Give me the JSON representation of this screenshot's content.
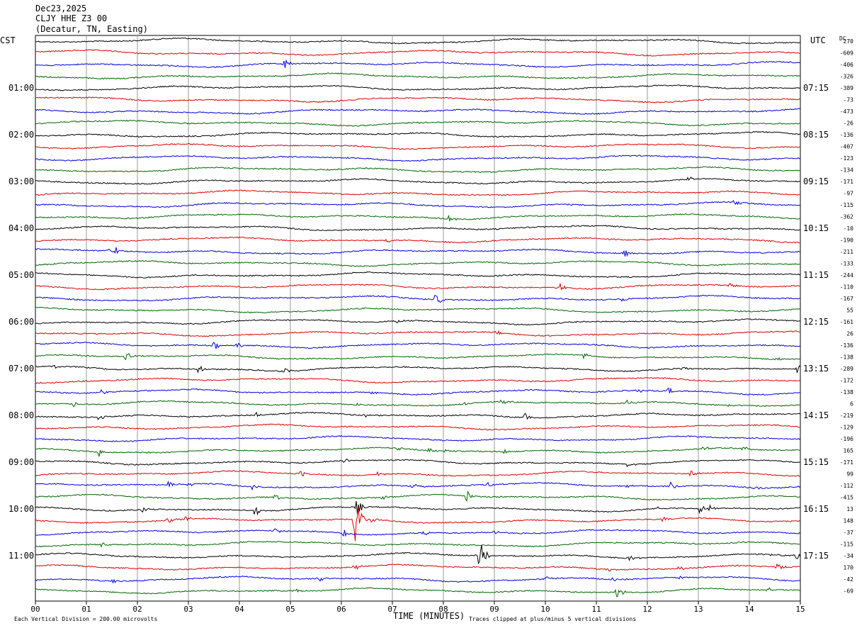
{
  "header": {
    "date": "Dec23,2025",
    "station": "CLJY HHE Z3 00",
    "location": "(Decatur, TN, Easting)"
  },
  "left_timezone": "CST",
  "right_timezone": "UTC",
  "dc_label": "DC",
  "chart_data": {
    "type": "line",
    "description_kind": "helicorder",
    "xlabel": "TIME (MINUTES)",
    "x_ticks": [
      "00",
      "01",
      "02",
      "03",
      "04",
      "05",
      "06",
      "07",
      "08",
      "09",
      "10",
      "11",
      "12",
      "13",
      "14",
      "15"
    ],
    "xlim": [
      0,
      15
    ],
    "left_hour_labels": [
      {
        "row": 4,
        "label": "01:00"
      },
      {
        "row": 8,
        "label": "02:00"
      },
      {
        "row": 12,
        "label": "03:00"
      },
      {
        "row": 16,
        "label": "04:00"
      },
      {
        "row": 20,
        "label": "05:00"
      },
      {
        "row": 24,
        "label": "06:00"
      },
      {
        "row": 28,
        "label": "07:00"
      },
      {
        "row": 32,
        "label": "08:00"
      },
      {
        "row": 36,
        "label": "09:00"
      },
      {
        "row": 40,
        "label": "10:00"
      },
      {
        "row": 44,
        "label": "11:00"
      }
    ],
    "right_hour_labels": [
      {
        "row": 4,
        "label": "07:15"
      },
      {
        "row": 8,
        "label": "08:15"
      },
      {
        "row": 12,
        "label": "09:15"
      },
      {
        "row": 16,
        "label": "10:15"
      },
      {
        "row": 20,
        "label": "11:15"
      },
      {
        "row": 24,
        "label": "12:15"
      },
      {
        "row": 28,
        "label": "13:15"
      },
      {
        "row": 32,
        "label": "14:15"
      },
      {
        "row": 36,
        "label": "15:15"
      },
      {
        "row": 40,
        "label": "16:15"
      },
      {
        "row": 44,
        "label": "17:15"
      }
    ],
    "dc_offsets": [
      "270",
      "-609",
      "-406",
      "-326",
      "-389",
      "-73",
      "-473",
      "-26",
      "-136",
      "-407",
      "-123",
      "-134",
      "-171",
      "-97",
      "-115",
      "-362",
      "-10",
      "-190",
      "-211",
      "-133",
      "-244",
      "-110",
      "-167",
      "55",
      "-161",
      "26",
      "-136",
      "-138",
      "-289",
      "-172",
      "-138",
      "6",
      "-219",
      "-129",
      "-196",
      "165",
      "-171",
      "99",
      "-112",
      "-415",
      "13",
      "148",
      "-37",
      "-115",
      "-34",
      "170",
      "-42",
      "-69"
    ],
    "trace_colors": [
      "#000000",
      "#dd0000",
      "#0000dd",
      "#006600"
    ],
    "events": [
      {
        "row": 2,
        "minute": 4.85,
        "amp": 14
      },
      {
        "row": 12,
        "minute": 12.8,
        "amp": 4
      },
      {
        "row": 14,
        "minute": 13.7,
        "amp": 6
      },
      {
        "row": 15,
        "minute": 8.1,
        "amp": 4
      },
      {
        "row": 17,
        "minute": 6.9,
        "amp": 4
      },
      {
        "row": 18,
        "minute": 1.35,
        "amp": 7
      },
      {
        "row": 18,
        "minute": 1.55,
        "amp": 7
      },
      {
        "row": 18,
        "minute": 11.55,
        "amp": 5
      },
      {
        "row": 21,
        "minute": 10.3,
        "amp": 9
      },
      {
        "row": 21,
        "minute": 13.6,
        "amp": 4
      },
      {
        "row": 22,
        "minute": 7.85,
        "amp": 10
      },
      {
        "row": 22,
        "minute": 11.5,
        "amp": 5
      },
      {
        "row": 24,
        "minute": 7.1,
        "amp": 5
      },
      {
        "row": 25,
        "minute": 9.05,
        "amp": 3
      },
      {
        "row": 26,
        "minute": 3.5,
        "amp": 7
      },
      {
        "row": 26,
        "minute": 3.95,
        "amp": 6
      },
      {
        "row": 27,
        "minute": 1.75,
        "amp": 9
      },
      {
        "row": 27,
        "minute": 10.75,
        "amp": 5
      },
      {
        "row": 27,
        "minute": 14.55,
        "amp": 4
      },
      {
        "row": 28,
        "minute": 0.35,
        "amp": 5
      },
      {
        "row": 28,
        "minute": 3.2,
        "amp": 6
      },
      {
        "row": 28,
        "minute": 4.85,
        "amp": 6
      },
      {
        "row": 28,
        "minute": 12.7,
        "amp": 4
      },
      {
        "row": 28,
        "minute": 14.95,
        "amp": 8
      },
      {
        "row": 29,
        "minute": 10.45,
        "amp": 3
      },
      {
        "row": 30,
        "minute": 1.3,
        "amp": 5
      },
      {
        "row": 30,
        "minute": 6.6,
        "amp": 3
      },
      {
        "row": 30,
        "minute": 11.8,
        "amp": 4
      },
      {
        "row": 30,
        "minute": 12.4,
        "amp": 6
      },
      {
        "row": 31,
        "minute": 0.75,
        "amp": 4
      },
      {
        "row": 31,
        "minute": 6.3,
        "amp": 4
      },
      {
        "row": 31,
        "minute": 8.4,
        "amp": 3
      },
      {
        "row": 31,
        "minute": 9.15,
        "amp": 4
      },
      {
        "row": 31,
        "minute": 11.6,
        "amp": 4
      },
      {
        "row": 31,
        "minute": 13.6,
        "amp": 4
      },
      {
        "row": 32,
        "minute": 1.25,
        "amp": 6
      },
      {
        "row": 32,
        "minute": 4.3,
        "amp": 5
      },
      {
        "row": 32,
        "minute": 6.45,
        "amp": 3
      },
      {
        "row": 32,
        "minute": 9.6,
        "amp": 8
      },
      {
        "row": 35,
        "minute": 1.25,
        "amp": 6
      },
      {
        "row": 35,
        "minute": 7.1,
        "amp": 3
      },
      {
        "row": 35,
        "minute": 7.7,
        "amp": 5
      },
      {
        "row": 35,
        "minute": 8.0,
        "amp": 5
      },
      {
        "row": 35,
        "minute": 9.2,
        "amp": 3
      },
      {
        "row": 35,
        "minute": 13.1,
        "amp": 6
      },
      {
        "row": 35,
        "minute": 13.85,
        "amp": 5
      },
      {
        "row": 36,
        "minute": 6.05,
        "amp": 4
      },
      {
        "row": 36,
        "minute": 11.6,
        "amp": 4
      },
      {
        "row": 37,
        "minute": 5.2,
        "amp": 7
      },
      {
        "row": 37,
        "minute": 6.7,
        "amp": 4
      },
      {
        "row": 37,
        "minute": 12.85,
        "amp": 7
      },
      {
        "row": 38,
        "minute": 2.6,
        "amp": 5
      },
      {
        "row": 38,
        "minute": 3.0,
        "amp": 5
      },
      {
        "row": 38,
        "minute": 4.25,
        "amp": 4
      },
      {
        "row": 38,
        "minute": 7.4,
        "amp": 6
      },
      {
        "row": 38,
        "minute": 8.85,
        "amp": 5
      },
      {
        "row": 38,
        "minute": 11.55,
        "amp": 4
      },
      {
        "row": 38,
        "minute": 12.45,
        "amp": 16
      },
      {
        "row": 38,
        "minute": 14.1,
        "amp": 4
      },
      {
        "row": 39,
        "minute": 4.7,
        "amp": 5
      },
      {
        "row": 39,
        "minute": 6.8,
        "amp": 4
      },
      {
        "row": 39,
        "minute": 8.45,
        "amp": 9
      },
      {
        "row": 40,
        "minute": 2.1,
        "amp": 4
      },
      {
        "row": 40,
        "minute": 4.3,
        "amp": 10
      },
      {
        "row": 40,
        "minute": 6.3,
        "amp": 12
      },
      {
        "row": 40,
        "minute": 12.2,
        "amp": 4
      },
      {
        "row": 40,
        "minute": 13.0,
        "amp": 8
      },
      {
        "row": 40,
        "minute": 13.2,
        "amp": 6
      },
      {
        "row": 41,
        "minute": 2.6,
        "amp": 7
      },
      {
        "row": 41,
        "minute": 2.95,
        "amp": 5
      },
      {
        "row": 41,
        "minute": 6.25,
        "amp": 48
      },
      {
        "row": 41,
        "minute": 6.6,
        "amp": 6
      },
      {
        "row": 41,
        "minute": 12.3,
        "amp": 5
      },
      {
        "row": 42,
        "minute": 4.7,
        "amp": 5
      },
      {
        "row": 42,
        "minute": 6.05,
        "amp": 6
      },
      {
        "row": 42,
        "minute": 7.6,
        "amp": 6
      },
      {
        "row": 42,
        "minute": 9.0,
        "amp": 3
      },
      {
        "row": 43,
        "minute": 1.3,
        "amp": 4
      },
      {
        "row": 44,
        "minute": 8.7,
        "amp": 26
      },
      {
        "row": 44,
        "minute": 11.65,
        "amp": 4
      },
      {
        "row": 44,
        "minute": 14.4,
        "amp": 5
      },
      {
        "row": 44,
        "minute": 14.9,
        "amp": 6
      },
      {
        "row": 45,
        "minute": 6.25,
        "amp": 5
      },
      {
        "row": 45,
        "minute": 11.25,
        "amp": 4
      },
      {
        "row": 45,
        "minute": 12.6,
        "amp": 4
      },
      {
        "row": 45,
        "minute": 14.55,
        "amp": 8
      },
      {
        "row": 46,
        "minute": 1.5,
        "amp": 4
      },
      {
        "row": 46,
        "minute": 5.55,
        "amp": 6
      },
      {
        "row": 46,
        "minute": 10.0,
        "amp": 5
      },
      {
        "row": 46,
        "minute": 11.3,
        "amp": 4
      },
      {
        "row": 46,
        "minute": 12.6,
        "amp": 3
      },
      {
        "row": 47,
        "minute": 5.1,
        "amp": 4
      },
      {
        "row": 47,
        "minute": 11.4,
        "amp": 8
      },
      {
        "row": 47,
        "minute": 14.35,
        "amp": 4
      }
    ]
  },
  "footer": {
    "scale": "Each Vertical Division =  200.00 microvolts",
    "clip_note": "Traces clipped at plus/minus 5 vertical divisions"
  }
}
